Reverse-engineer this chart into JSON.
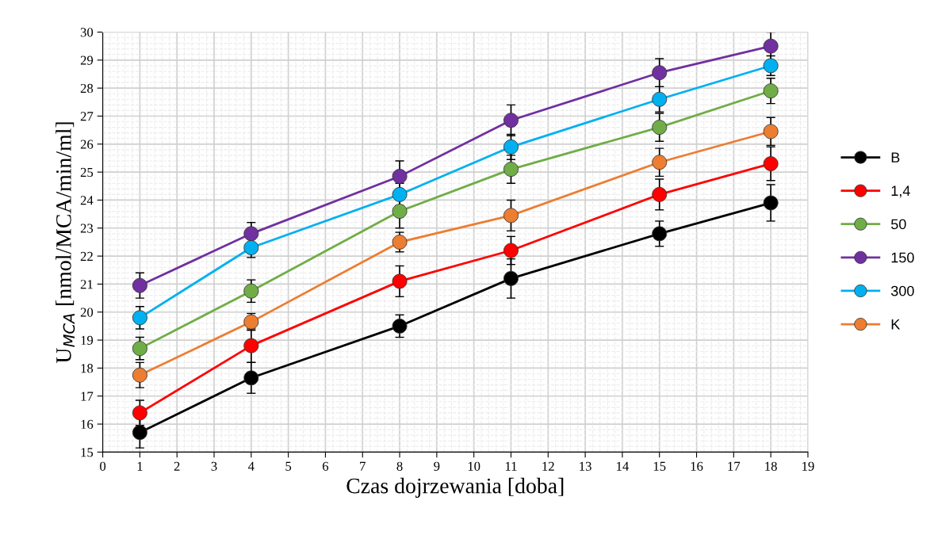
{
  "chart_data": {
    "type": "line",
    "xlabel": "Czas dojrzewania [doba]",
    "ylabel": "U$_{MCA}$ [nmol/MCA/min/ml]",
    "x": [
      1,
      4,
      8,
      11,
      15,
      18
    ],
    "xlim": [
      0,
      19
    ],
    "xticks": [
      0,
      1,
      2,
      3,
      4,
      5,
      6,
      7,
      8,
      9,
      10,
      11,
      12,
      13,
      14,
      15,
      16,
      17,
      18,
      19
    ],
    "ylim": [
      15,
      30
    ],
    "yticks": [
      15,
      16,
      17,
      18,
      19,
      20,
      21,
      22,
      23,
      24,
      25,
      26,
      27,
      28,
      29,
      30
    ],
    "grid": true,
    "legend": "right",
    "marker": "circle",
    "line_style": "solid",
    "series": [
      {
        "name": "B",
        "color": "#000000",
        "values": [
          15.7,
          17.65,
          19.5,
          21.2,
          22.8,
          23.9
        ],
        "errors": [
          0.55,
          0.55,
          0.4,
          0.7,
          0.45,
          0.65
        ]
      },
      {
        "name": "1,4",
        "color": "#ff0000",
        "values": [
          16.4,
          18.8,
          21.1,
          22.2,
          24.2,
          25.3
        ],
        "errors": [
          0.45,
          0.6,
          0.55,
          0.5,
          0.55,
          0.6
        ]
      },
      {
        "name": "50",
        "color": "#70ad47",
        "values": [
          18.7,
          20.75,
          23.6,
          25.1,
          26.6,
          27.9
        ],
        "errors": [
          0.4,
          0.4,
          0.6,
          0.5,
          0.5,
          0.45
        ]
      },
      {
        "name": "150",
        "color": "#7030a0",
        "values": [
          20.95,
          22.8,
          24.85,
          26.85,
          28.55,
          29.5
        ],
        "errors": [
          0.45,
          0.4,
          0.55,
          0.55,
          0.5,
          0.5
        ]
      },
      {
        "name": "300",
        "color": "#00b0f0",
        "values": [
          19.8,
          22.3,
          24.2,
          25.9,
          27.6,
          28.8
        ],
        "errors": [
          0.4,
          0.35,
          0.4,
          0.45,
          0.45,
          0.35
        ]
      },
      {
        "name": "K",
        "color": "#ed7d31",
        "values": [
          17.75,
          19.65,
          22.5,
          23.45,
          25.35,
          26.45
        ],
        "errors": [
          0.45,
          0.3,
          0.35,
          0.55,
          0.5,
          0.5
        ]
      }
    ]
  }
}
